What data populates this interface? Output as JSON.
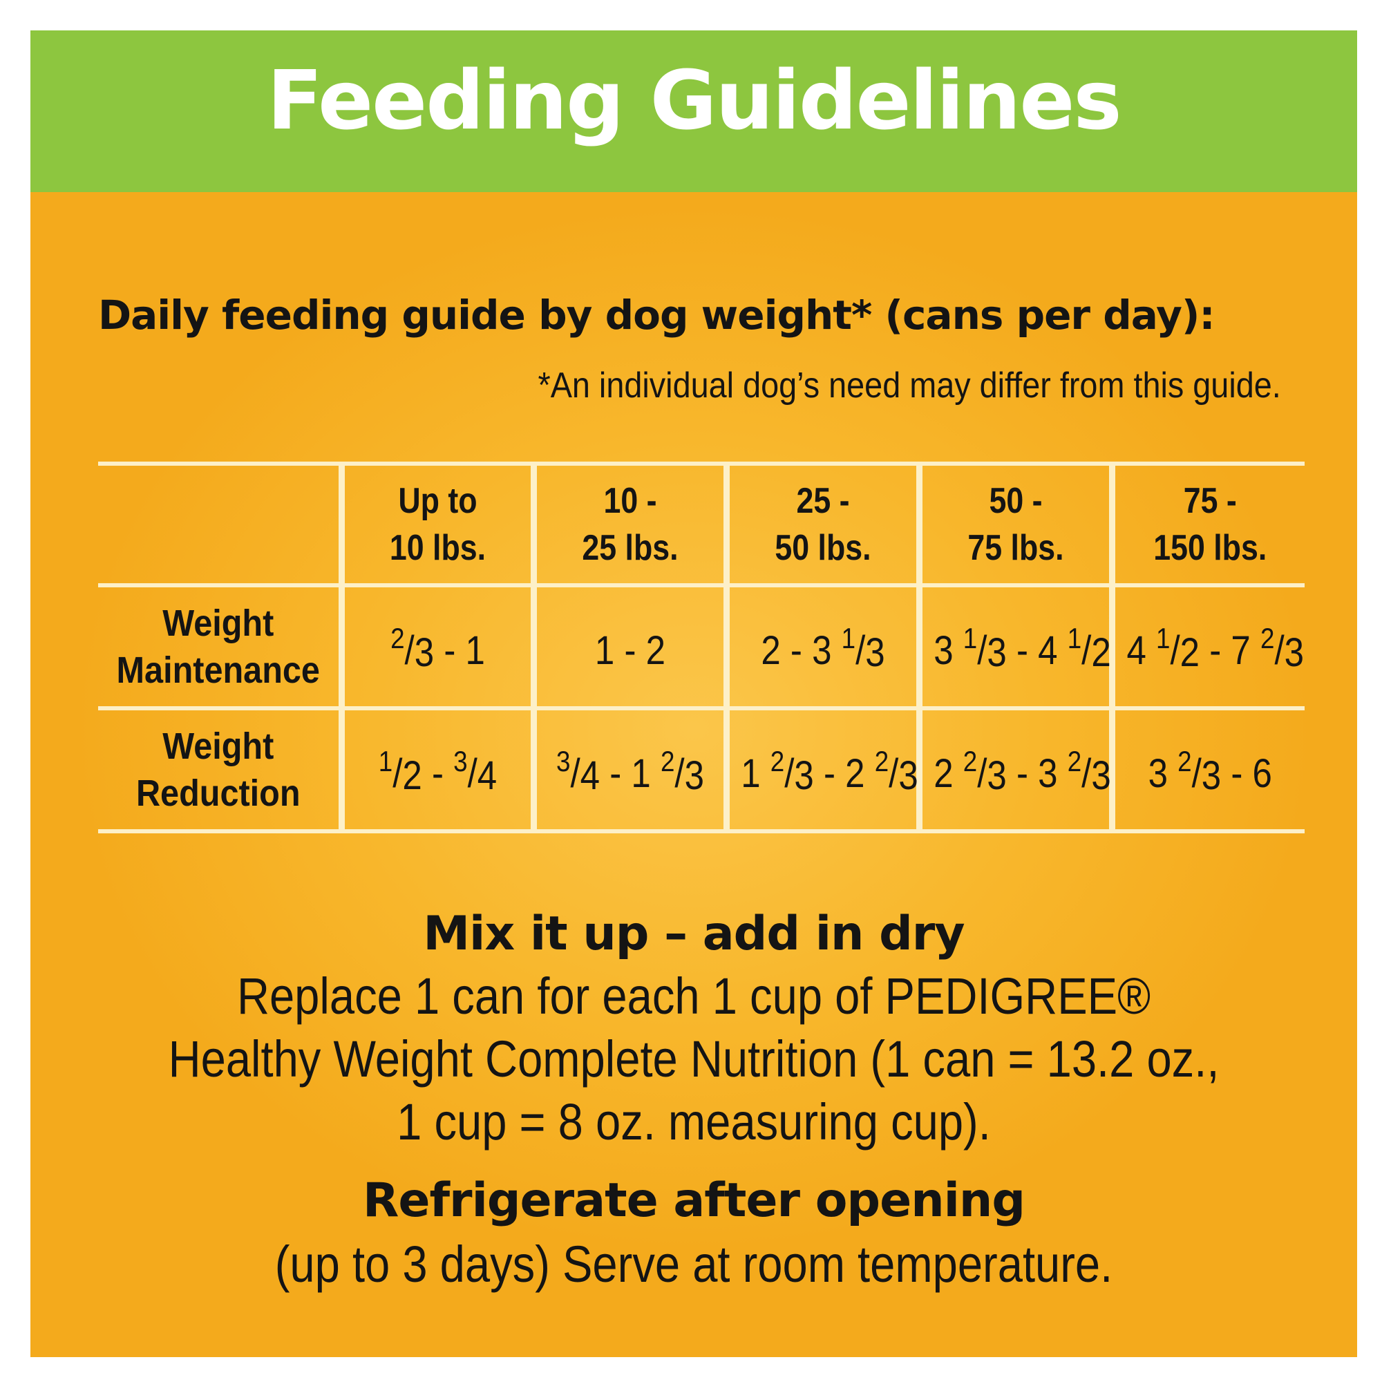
{
  "header": {
    "title": "Feeding Guidelines"
  },
  "guide": {
    "subtitle": "Daily feeding guide by dog weight* (cans per day):",
    "footnote": "*An individual dog’s need may differ from this guide."
  },
  "table": {
    "columns": [
      {
        "line1": "Up to",
        "line2": "10 lbs."
      },
      {
        "line1": "10 -",
        "line2": "25 lbs."
      },
      {
        "line1": "25 -",
        "line2": "50 lbs."
      },
      {
        "line1": "50 -",
        "line2": "75 lbs."
      },
      {
        "line1": "75 -",
        "line2": "150 lbs."
      }
    ],
    "rows": [
      {
        "line1": "Weight",
        "line2": "Maintenance",
        "values": [
          "2/3 - 1",
          "1 - 2",
          "2 - 3 1/3",
          "3 1/3 - 4 1/2",
          "4 1/2 - 7 2/3"
        ]
      },
      {
        "line1": "Weight",
        "line2": "Reduction",
        "values": [
          "1/2 - 3/4",
          "3/4 - 1 2/3",
          "1 2/3 - 2 2/3",
          "2 2/3 - 3 2/3",
          "3 2/3 - 6"
        ]
      }
    ]
  },
  "mix": {
    "title": "Mix it up – add in dry",
    "line1": "Replace 1 can for each 1 cup of PEDIGREE®",
    "line2": "Healthy Weight Complete Nutrition (1 can = 13.2 oz.,",
    "line3": "1 cup = 8 oz. measuring cup)."
  },
  "storage": {
    "title": "Refrigerate after opening",
    "line1": "(up to 3 days) Serve at room temperature."
  },
  "colors": {
    "banner": "#8dc63f",
    "background": "#f8b72c",
    "grid": "#fdf0c8"
  }
}
